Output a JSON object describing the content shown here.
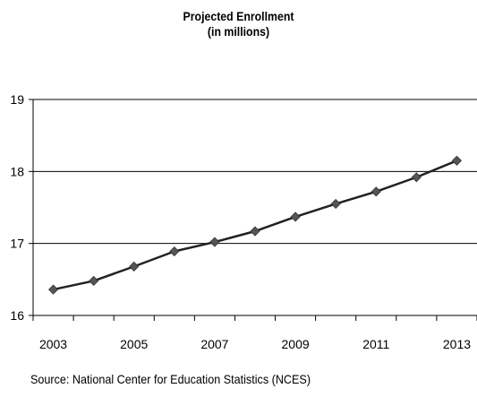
{
  "chart_data": {
    "type": "line",
    "title": "Projected Enrollment",
    "subtitle": "(in millions)",
    "xlabel": "",
    "ylabel": "",
    "x": [
      2003,
      2004,
      2005,
      2006,
      2007,
      2008,
      2009,
      2010,
      2011,
      2012,
      2013
    ],
    "x_tick_labels": [
      "2003",
      "2005",
      "2007",
      "2009",
      "2011",
      "2013"
    ],
    "y_ticks": [
      16,
      17,
      18,
      19
    ],
    "y_tick_labels": [
      "16",
      "17",
      "18",
      "19"
    ],
    "ylim": [
      16,
      19
    ],
    "grid": true,
    "series": [
      {
        "name": "",
        "color": "#222222",
        "marker_color": "#555555",
        "values": [
          16.36,
          16.48,
          16.68,
          16.89,
          17.02,
          17.17,
          17.37,
          17.55,
          17.72,
          17.92,
          18.15
        ]
      }
    ]
  },
  "footer": {
    "source": "Source: National Center for Education Statistics (NCES)"
  }
}
